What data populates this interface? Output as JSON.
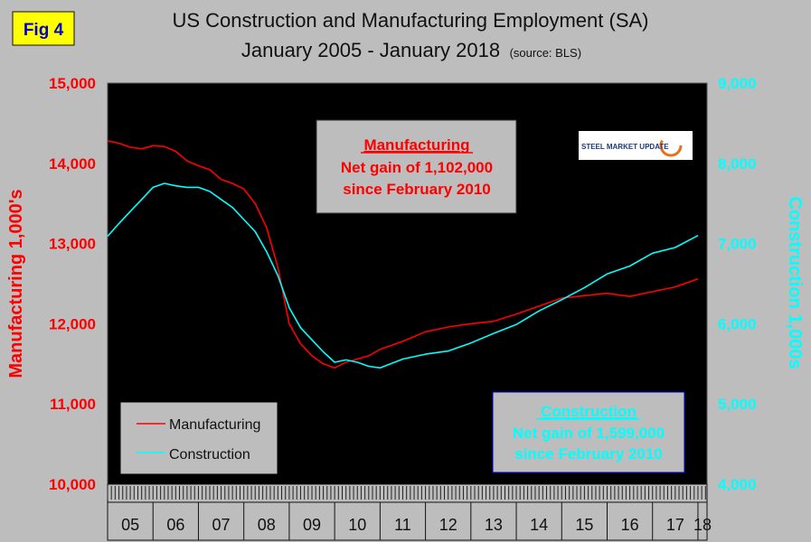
{
  "figure_label": "Fig 4",
  "logo": {
    "text": "STEEL MARKET UPDATE"
  },
  "annotations": {
    "manufacturing": {
      "title": "Manufacturing",
      "line1": "Net gain of 1,102,000",
      "line2": "since February 2010"
    },
    "construction": {
      "title": "Construction",
      "line1": "Net gain of 1,599,000",
      "line2": "since February 2010"
    }
  },
  "colors": {
    "manufacturing": "#ff0000",
    "construction": "#00ffff",
    "plot_bg": "#000000",
    "page_bg": "#bdbdbd",
    "box_bg": "#bdbdbd",
    "box_border": "#0000cc"
  },
  "chart_data": {
    "type": "line",
    "title": "US Construction and Manufacturing Employment (SA)",
    "subtitle": "January 2005 - January 2018",
    "source_note": "(source: BLS)",
    "ylabel": "Manufacturing 1,000's",
    "y2label": "Construction 1,000s",
    "ylim": [
      10000,
      15000
    ],
    "y2lim": [
      4000,
      9000
    ],
    "yticks": [
      "10,000",
      "11,000",
      "12,000",
      "13,000",
      "14,000",
      "15,000"
    ],
    "y2ticks": [
      "4,000",
      "5,000",
      "6,000",
      "7,000",
      "8,000",
      "9,000"
    ],
    "xlim": [
      2005.0,
      2018.2
    ],
    "categories": [
      "05",
      "06",
      "07",
      "08",
      "09",
      "10",
      "11",
      "12",
      "13",
      "14",
      "15",
      "16",
      "17",
      "18"
    ],
    "grid": false,
    "legend": "bottom-left",
    "series": [
      {
        "name": "Manufacturing",
        "axis": "left",
        "x": [
          2005.0,
          2005.25,
          2005.5,
          2005.75,
          2006.0,
          2006.25,
          2006.5,
          2006.75,
          2007.0,
          2007.25,
          2007.5,
          2007.75,
          2008.0,
          2008.25,
          2008.5,
          2008.75,
          2009.0,
          2009.25,
          2009.5,
          2009.75,
          2010.0,
          2010.25,
          2010.5,
          2010.75,
          2011.0,
          2011.5,
          2012.0,
          2012.5,
          2013.0,
          2013.5,
          2014.0,
          2014.5,
          2015.0,
          2015.5,
          2016.0,
          2016.5,
          2017.0,
          2017.5,
          2018.0
        ],
        "values": [
          14280,
          14250,
          14200,
          14180,
          14220,
          14210,
          14150,
          14030,
          13970,
          13920,
          13800,
          13750,
          13680,
          13500,
          13200,
          12700,
          12000,
          11750,
          11600,
          11500,
          11450,
          11520,
          11560,
          11600,
          11680,
          11780,
          11900,
          11960,
          12000,
          12030,
          12120,
          12220,
          12320,
          12350,
          12380,
          12340,
          12400,
          12460,
          12560
        ]
      },
      {
        "name": "Construction",
        "axis": "right",
        "x": [
          2005.0,
          2005.25,
          2005.5,
          2005.75,
          2006.0,
          2006.25,
          2006.5,
          2006.75,
          2007.0,
          2007.25,
          2007.5,
          2007.75,
          2008.0,
          2008.25,
          2008.5,
          2008.75,
          2009.0,
          2009.25,
          2009.5,
          2009.75,
          2010.0,
          2010.25,
          2010.5,
          2010.75,
          2011.0,
          2011.5,
          2012.0,
          2012.5,
          2013.0,
          2013.5,
          2014.0,
          2014.5,
          2015.0,
          2015.5,
          2016.0,
          2016.5,
          2017.0,
          2017.5,
          2018.0
        ],
        "values": [
          7090,
          7250,
          7400,
          7550,
          7700,
          7750,
          7720,
          7700,
          7700,
          7650,
          7550,
          7450,
          7300,
          7150,
          6900,
          6600,
          6200,
          5950,
          5800,
          5650,
          5520,
          5550,
          5520,
          5470,
          5450,
          5560,
          5620,
          5660,
          5760,
          5880,
          5990,
          6160,
          6300,
          6450,
          6620,
          6720,
          6880,
          6950,
          7100
        ]
      }
    ]
  }
}
